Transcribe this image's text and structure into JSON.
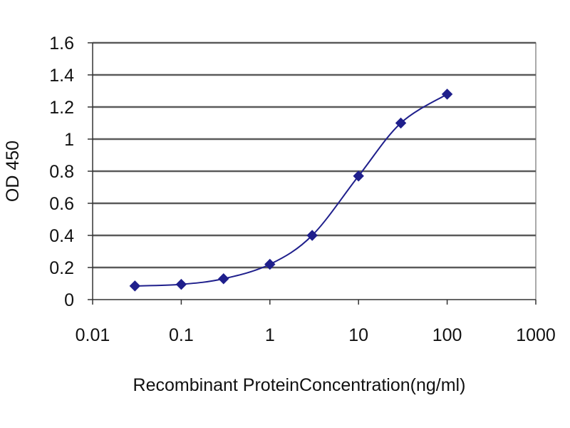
{
  "chart_data": {
    "type": "line",
    "title": "",
    "xlabel": "Recombinant  ProteinConcentration(ng/ml)",
    "ylabel": "OD 450",
    "xscale": "log",
    "xlim": [
      0.01,
      1000
    ],
    "ylim": [
      0,
      1.6
    ],
    "xticks": [
      "0.01",
      "0.1",
      "1",
      "10",
      "100",
      "1000"
    ],
    "yticks": [
      "0",
      "0.2",
      "0.4",
      "0.6",
      "0.8",
      "1",
      "1.2",
      "1.4",
      "1.6"
    ],
    "grid": "horizontal",
    "legend": "none",
    "plot_background": "#ffffff",
    "grid_color": "#5a5a5a",
    "series": [
      {
        "color": "#1f1f8c",
        "marker": "diamond",
        "x": [
          0.03,
          0.1,
          0.3,
          1,
          3,
          10,
          30,
          100
        ],
        "y": [
          0.085,
          0.095,
          0.13,
          0.22,
          0.4,
          0.77,
          1.1,
          1.28
        ]
      }
    ]
  }
}
